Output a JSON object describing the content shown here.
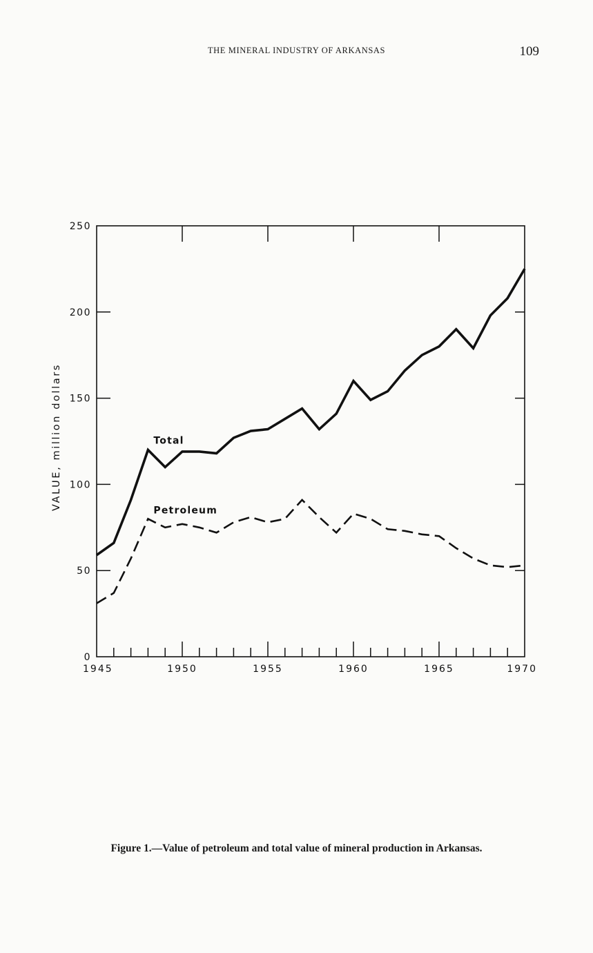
{
  "page": {
    "running_head": "THE MINERAL INDUSTRY OF ARKANSAS",
    "page_number": "109",
    "caption": "Figure 1.—Value of petroleum and total value of mineral production in Arkansas."
  },
  "chart_data": {
    "type": "line",
    "title": "",
    "xlabel": "",
    "ylabel": "VALUE, million dollars",
    "xlim": [
      1945,
      1970
    ],
    "ylim": [
      0,
      250
    ],
    "x_ticks": [
      1945,
      1950,
      1955,
      1960,
      1965,
      1970
    ],
    "x_tick_labels": [
      "1945",
      "1950",
      "1955",
      "1960",
      "1965",
      "1970"
    ],
    "y_ticks": [
      0,
      50,
      100,
      150,
      200,
      250
    ],
    "y_tick_labels": [
      "0",
      "50",
      "100",
      "150",
      "200",
      "250"
    ],
    "grid": false,
    "x": [
      1945,
      1946,
      1947,
      1948,
      1949,
      1950,
      1951,
      1952,
      1953,
      1954,
      1955,
      1956,
      1957,
      1958,
      1959,
      1960,
      1961,
      1962,
      1963,
      1964,
      1965,
      1966,
      1967,
      1968,
      1969,
      1970
    ],
    "series": [
      {
        "name": "Total",
        "style": "solid",
        "color": "#111111",
        "values": [
          59,
          66,
          91,
          120,
          110,
          119,
          119,
          118,
          127,
          131,
          132,
          138,
          144,
          132,
          141,
          160,
          149,
          154,
          166,
          175,
          180,
          190,
          179,
          198,
          208,
          225
        ]
      },
      {
        "name": "Petroleum",
        "style": "dashed",
        "color": "#111111",
        "values": [
          31,
          37,
          57,
          80,
          75,
          77,
          75,
          72,
          78,
          81,
          78,
          80,
          91,
          81,
          72,
          83,
          80,
          74,
          73,
          71,
          70,
          63,
          57,
          53,
          52,
          53
        ]
      }
    ]
  }
}
